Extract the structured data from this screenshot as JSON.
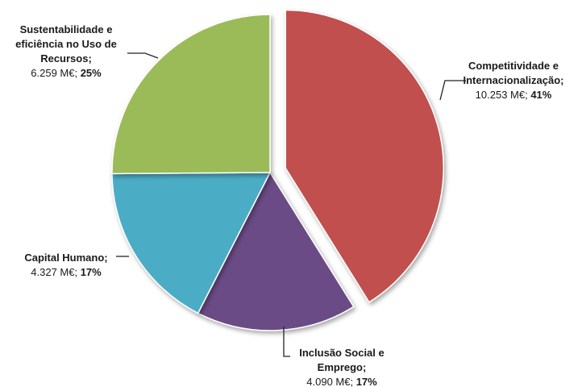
{
  "chart_data": {
    "type": "pie",
    "unit": "M€",
    "slices": [
      {
        "label_lines": [
          "Competitividade e",
          "Internacionalização;"
        ],
        "value_text": "10.253 M€;",
        "value": 10253,
        "percent_text": "41%",
        "color": "#c0504d",
        "exploded": true
      },
      {
        "label_lines": [
          "Inclusão Social e",
          "Emprego;"
        ],
        "value_text": "4.090 M€;",
        "value": 4090,
        "percent_text": "17%",
        "color": "#6a4b86",
        "exploded": false
      },
      {
        "label_lines": [
          "Capital Humano;"
        ],
        "value_text": "4.327 M€;",
        "value": 4327,
        "percent_text": "17%",
        "color": "#4bacc6",
        "exploded": false
      },
      {
        "label_lines": [
          "Sustentabilidade e",
          "eficiência no Uso de",
          "Recursos;"
        ],
        "value_text": "6.259 M€;",
        "value": 6259,
        "percent_text": "25%",
        "color": "#9bbb59",
        "exploded": false
      }
    ],
    "legend": "none"
  }
}
